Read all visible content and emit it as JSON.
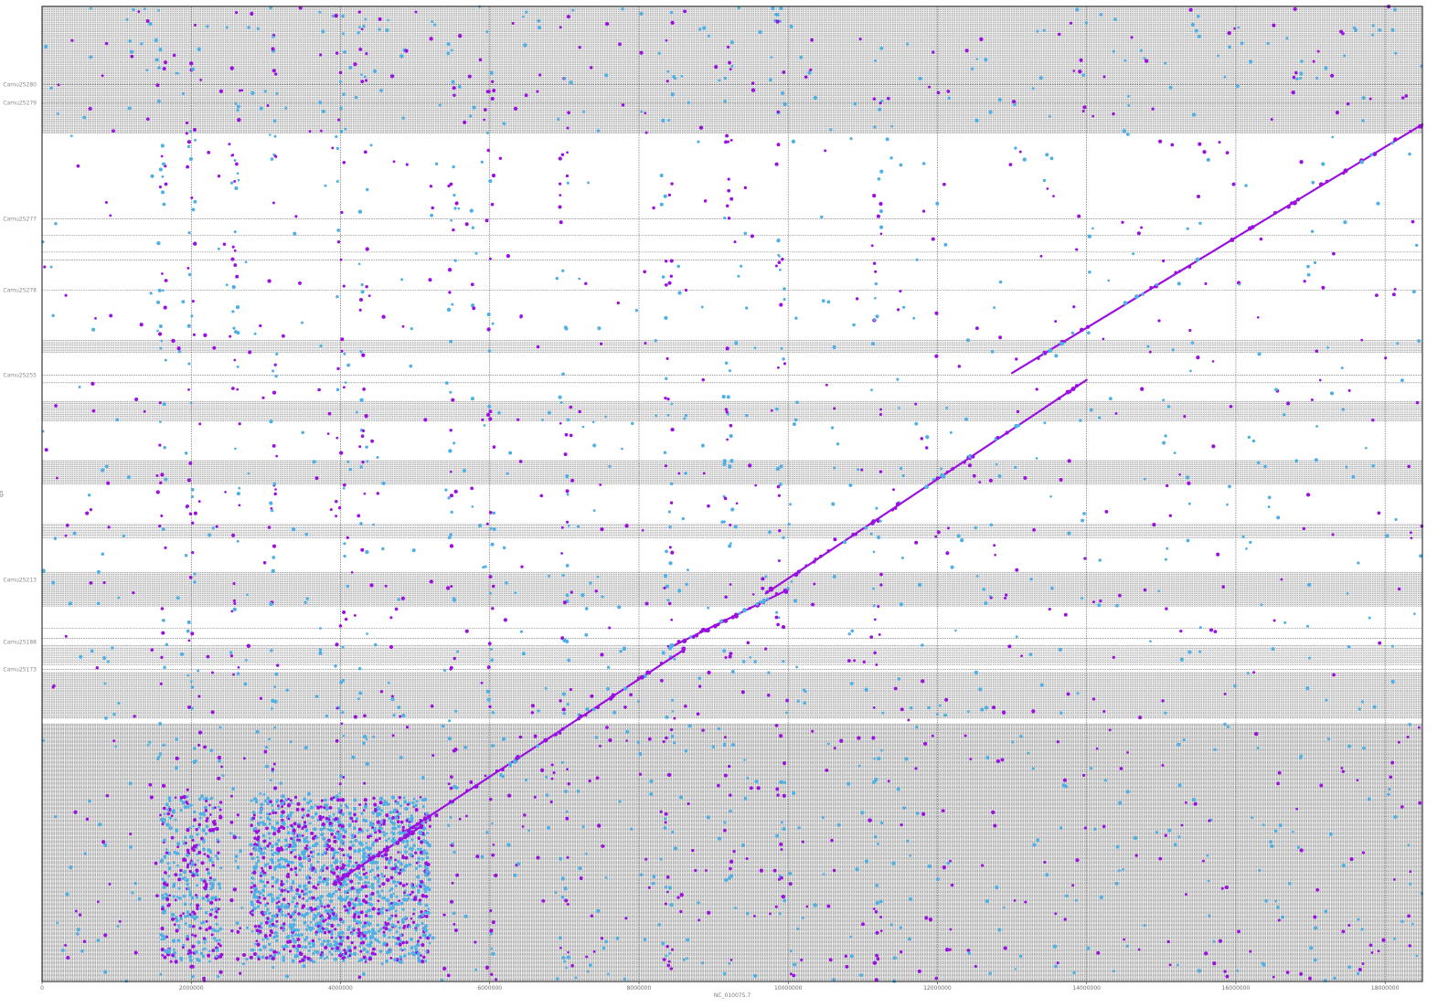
{
  "chart_data": {
    "type": "scatter",
    "title": "",
    "xlabel": "NC_010075.7",
    "ylabel": "q5",
    "xlim": [
      0,
      18500000
    ],
    "ylim": [
      0,
      1000
    ],
    "x_ticks": [
      0,
      2000000,
      4000000,
      6000000,
      8000000,
      10000000,
      12000000,
      14000000,
      16000000,
      18000000
    ],
    "x_tick_labels": [
      "0",
      "2000000",
      "4000000",
      "6000000",
      "8000000",
      "10000000",
      "12000000",
      "14000000",
      "16000000",
      "18000000"
    ],
    "grid": true,
    "colors": {
      "forward": "#9b10e0",
      "reverse": "#4fb0e6",
      "grid": "#555555"
    },
    "contig_labels": [
      {
        "name": "Camu25280",
        "y": 920
      },
      {
        "name": "Camu25279",
        "y": 901
      },
      {
        "name": "Camu25277",
        "y": 782
      },
      {
        "name": "Camu25278",
        "y": 709
      },
      {
        "name": "Camu25255",
        "y": 622
      },
      {
        "name": "Camu25213",
        "y": 412
      },
      {
        "name": "Camu25188",
        "y": 348
      },
      {
        "name": "Camu25173",
        "y": 320
      }
    ],
    "alignments": [
      {
        "x": [
          13000000,
          18500000
        ],
        "y": [
          624,
          879
        ],
        "strand": "forward"
      },
      {
        "x": [
          9700000,
          14000000
        ],
        "y": [
          398,
          617
        ],
        "strand": "forward"
      },
      {
        "x": [
          8400000,
          10000000
        ],
        "y": [
          342,
          402
        ],
        "strand": "forward"
      },
      {
        "x": [
          4900000,
          8600000
        ],
        "y": [
          155,
          340
        ],
        "strand": "forward"
      },
      {
        "x": [
          3900000,
          5100000
        ],
        "y": [
          100,
          160
        ],
        "strand": "forward"
      }
    ]
  }
}
